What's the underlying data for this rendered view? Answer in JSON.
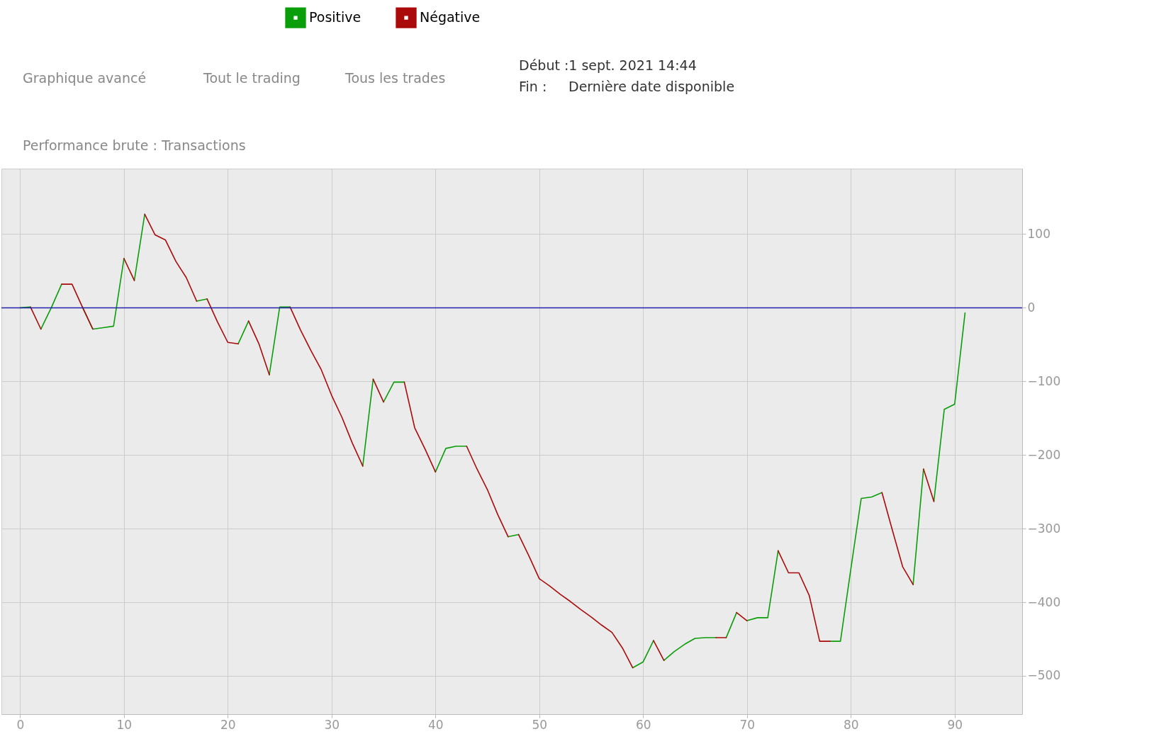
{
  "chart_data": {
    "type": "line",
    "annotations": [
      "Graphique avancé",
      "Tout le trading",
      "Tous les trades",
      "Début :1 sept. 2021 14:44",
      "Fin :",
      "Dernière date disponible",
      "Performance brute : Transactions"
    ],
    "series": [
      {
        "name": "Positive",
        "color": "#0a9e0a",
        "x": [
          0,
          1,
          null,
          2,
          3,
          4,
          null,
          6,
          7,
          8,
          9,
          10,
          null,
          11,
          12,
          null,
          17,
          18,
          null,
          21,
          22,
          null,
          24,
          25,
          26,
          null,
          33,
          34,
          null,
          35,
          36,
          37,
          null,
          40,
          41,
          42,
          43,
          null,
          47,
          48,
          null,
          59,
          60,
          61,
          null,
          62,
          63,
          64,
          65,
          66,
          67,
          null,
          68,
          69,
          null,
          70,
          71,
          72,
          73,
          null,
          78,
          79,
          80,
          81,
          82,
          83,
          null,
          86,
          87,
          null,
          88,
          89,
          90,
          91
        ],
        "values": [
          0,
          1,
          null,
          -29,
          0,
          32,
          null,
          1,
          -29,
          -27,
          -25,
          67,
          null,
          37,
          127,
          null,
          9,
          12,
          null,
          -49,
          -18,
          null,
          -91,
          1,
          1,
          null,
          -215,
          -97,
          null,
          -128,
          -101,
          -101,
          null,
          -223,
          -191,
          -188,
          -188,
          null,
          -311,
          -308,
          null,
          -489,
          -481,
          -452,
          null,
          -479,
          -467,
          -457,
          -449,
          -448,
          -448,
          null,
          -448,
          -414,
          null,
          -425,
          -421,
          -421,
          -330,
          null,
          -453,
          -453,
          -355,
          -259,
          -257,
          -251,
          null,
          -376,
          -219,
          null,
          -263,
          -138,
          -131,
          -7
        ]
      },
      {
        "name": "Négative",
        "color": "#aa0a0a",
        "x": [
          1,
          2,
          null,
          4,
          5,
          6,
          7,
          null,
          10,
          11,
          null,
          12,
          13,
          14,
          15,
          16,
          17,
          null,
          18,
          19,
          20,
          21,
          null,
          22,
          23,
          24,
          null,
          26,
          27,
          28,
          29,
          30,
          31,
          32,
          33,
          null,
          34,
          35,
          null,
          37,
          38,
          39,
          40,
          null,
          43,
          44,
          45,
          46,
          47,
          null,
          48,
          49,
          50,
          51,
          52,
          53,
          54,
          55,
          56,
          57,
          58,
          59,
          null,
          61,
          62,
          null,
          67,
          68,
          null,
          69,
          70,
          null,
          73,
          74,
          75,
          76,
          77,
          78,
          null,
          83,
          84,
          85,
          86,
          null,
          87,
          88
        ],
        "values": [
          1,
          -29,
          null,
          32,
          32,
          1,
          -29,
          null,
          67,
          37,
          null,
          127,
          99,
          92,
          63,
          41,
          9,
          null,
          12,
          -19,
          -47,
          -49,
          null,
          -18,
          -49,
          -91,
          null,
          1,
          -30,
          -58,
          -84,
          -119,
          -149,
          -184,
          -215,
          null,
          -97,
          -128,
          null,
          -101,
          -163,
          -192,
          -223,
          null,
          -188,
          -219,
          -247,
          -281,
          -311,
          null,
          -308,
          -337,
          -368,
          -378,
          -389,
          -399,
          -410,
          -420,
          -431,
          -441,
          -462,
          -489,
          null,
          -452,
          -479,
          null,
          -448,
          -448,
          null,
          -414,
          -425,
          null,
          -330,
          -360,
          -360,
          -391,
          -453,
          -453,
          null,
          -251,
          -302,
          -352,
          -376,
          null,
          -219,
          -263
        ]
      }
    ],
    "xlim": [
      -1.8,
      96.5
    ],
    "xticks": [
      0,
      10,
      20,
      30,
      40,
      50,
      60,
      70,
      80,
      90
    ],
    "ylim": [
      -552,
      189
    ],
    "yticks": [
      -500,
      -400,
      -300,
      -200,
      -100,
      0,
      100
    ],
    "ref_lines": [
      {
        "axis": "y",
        "value": 0,
        "color": "#2222aa"
      }
    ],
    "grid": true,
    "legend": "top left"
  }
}
